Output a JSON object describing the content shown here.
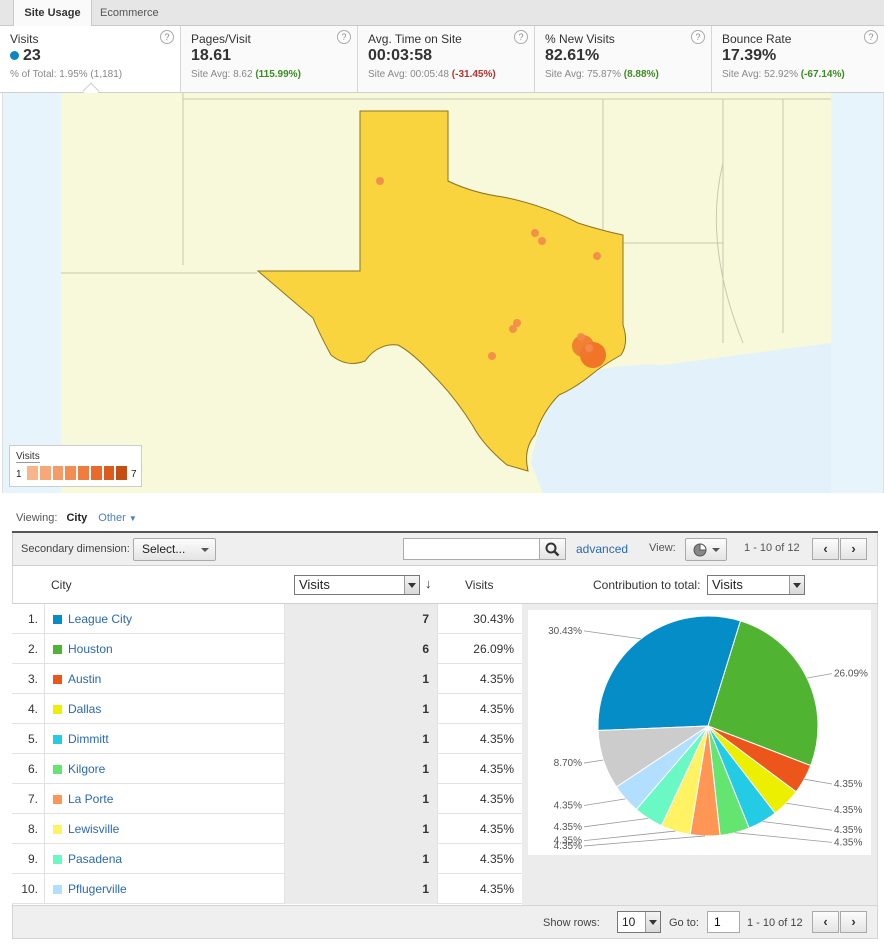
{
  "tabs": {
    "active": "Site Usage",
    "inactive": "Ecommerce"
  },
  "metrics": [
    {
      "label": "Visits",
      "value": "23",
      "sub_prefix": "% of Total: ",
      "sub_value": "1.95% (1,181)",
      "sub_class": ""
    },
    {
      "label": "Pages/Visit",
      "value": "18.61",
      "sub_prefix": "Site Avg: 8.62 ",
      "sub_value": "(115.99%)",
      "sub_class": "pos"
    },
    {
      "label": "Avg. Time on Site",
      "value": "00:03:58",
      "sub_prefix": "Site Avg: 00:05:48 ",
      "sub_value": "(-31.45%)",
      "sub_class": "neg"
    },
    {
      "label": "% New Visits",
      "value": "82.61%",
      "sub_prefix": "Site Avg: 75.87% ",
      "sub_value": "(8.88%)",
      "sub_class": "pos"
    },
    {
      "label": "Bounce Rate",
      "value": "17.39%",
      "sub_prefix": "Site Avg: 52.92% ",
      "sub_value": "(-67.14%)",
      "sub_class": "pos"
    }
  ],
  "help_glyph": "?",
  "map": {
    "legend_title": "Visits",
    "legend_min": "1",
    "legend_max": "7",
    "ramp_colors": [
      "#f9b489",
      "#f8a878",
      "#f69b66",
      "#f48d53",
      "#f07d3f",
      "#e96a2b",
      "#dc5b1e",
      "#c54e15"
    ]
  },
  "viewing": {
    "label": "Viewing:",
    "current": "City",
    "other": "Other"
  },
  "toolbar": {
    "secondary_label": "Secondary dimension:",
    "secondary_value": "Select...",
    "search_value": "",
    "advanced": "advanced",
    "view_label": "View:",
    "pager": "1 - 10 of 12",
    "prev": "‹",
    "next": "›"
  },
  "table": {
    "col_city": "City",
    "col_metric_select": "Visits",
    "col_visits": "Visits",
    "col_contrib_label": "Contribution to total:",
    "col_contrib_select": "Visits",
    "sort_glyph": "↓",
    "rows": [
      {
        "idx": "1.",
        "city": "League City",
        "visits": "7",
        "pct": "30.43%",
        "color": "#058dc7"
      },
      {
        "idx": "2.",
        "city": "Houston",
        "visits": "6",
        "pct": "26.09%",
        "color": "#50b432"
      },
      {
        "idx": "3.",
        "city": "Austin",
        "visits": "1",
        "pct": "4.35%",
        "color": "#ed561b"
      },
      {
        "idx": "4.",
        "city": "Dallas",
        "visits": "1",
        "pct": "4.35%",
        "color": "#edef00"
      },
      {
        "idx": "5.",
        "city": "Dimmitt",
        "visits": "1",
        "pct": "4.35%",
        "color": "#24cbe5"
      },
      {
        "idx": "6.",
        "city": "Kilgore",
        "visits": "1",
        "pct": "4.35%",
        "color": "#64e572"
      },
      {
        "idx": "7.",
        "city": "La Porte",
        "visits": "1",
        "pct": "4.35%",
        "color": "#ff9655"
      },
      {
        "idx": "8.",
        "city": "Lewisville",
        "visits": "1",
        "pct": "4.35%",
        "color": "#fff263"
      },
      {
        "idx": "9.",
        "city": "Pasadena",
        "visits": "1",
        "pct": "4.35%",
        "color": "#6af9c4"
      },
      {
        "idx": "10.",
        "city": "Pflugerville",
        "visits": "1",
        "pct": "4.35%",
        "color": "#b2deff"
      }
    ]
  },
  "chart_data": {
    "type": "pie",
    "values": [
      30.43,
      26.09,
      4.35,
      4.35,
      4.35,
      4.35,
      4.35,
      4.35,
      4.35,
      4.35,
      8.7
    ],
    "labels": [
      "30.43%",
      "26.09%",
      "4.35%",
      "4.35%",
      "4.35%",
      "4.35%",
      "4.35%",
      "4.35%",
      "4.35%",
      "4.35%",
      "8.70%"
    ],
    "colors": [
      "#058dc7",
      "#50b432",
      "#ed561b",
      "#edef00",
      "#24cbe5",
      "#64e572",
      "#ff9655",
      "#fff263",
      "#6af9c4",
      "#b2deff",
      "#cccccc"
    ]
  },
  "footer": {
    "show_rows_label": "Show rows:",
    "show_rows_value": "10",
    "goto_label": "Go to:",
    "goto_value": "1",
    "pager": "1 - 10 of 12",
    "prev": "‹",
    "next": "›"
  }
}
